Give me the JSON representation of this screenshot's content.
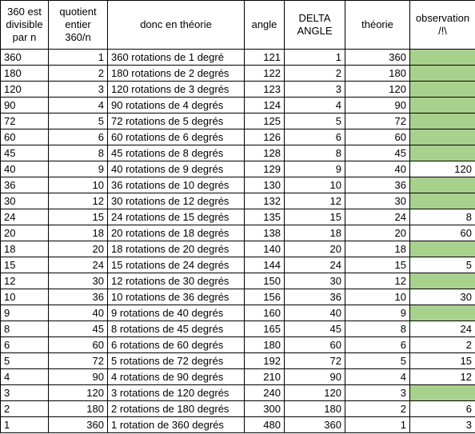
{
  "headers": {
    "divisible": "360 est divisible par n",
    "quotient": "quotient entier 360/n",
    "donc": "donc en théorie",
    "angle": "angle",
    "delta": "DELTA ANGLE",
    "theorie": "théorie",
    "observation": "observation /!\\"
  },
  "rows": [
    {
      "n": "360",
      "q": "1",
      "d": "360 rotations de 1 degré",
      "angle": "121",
      "delta": "1",
      "th": "360",
      "obs": "",
      "green": true
    },
    {
      "n": "180",
      "q": "2",
      "d": "180 rotations de 2 degrés",
      "angle": "122",
      "delta": "2",
      "th": "180",
      "obs": "",
      "green": true
    },
    {
      "n": "120",
      "q": "3",
      "d": "120 rotations de 3 degrés",
      "angle": "123",
      "delta": "3",
      "th": "120",
      "obs": "",
      "green": true
    },
    {
      "n": "90",
      "q": "4",
      "d": "90 rotations de 4 degrés",
      "angle": "124",
      "delta": "4",
      "th": "90",
      "obs": "",
      "green": true
    },
    {
      "n": "72",
      "q": "5",
      "d": "72 rotations de 5 degrés",
      "angle": "125",
      "delta": "5",
      "th": "72",
      "obs": "",
      "green": true
    },
    {
      "n": "60",
      "q": "6",
      "d": "60 rotations de 6 degrés",
      "angle": "126",
      "delta": "6",
      "th": "60",
      "obs": "",
      "green": true
    },
    {
      "n": "45",
      "q": "8",
      "d": "45 rotations de 8 degrés",
      "angle": "128",
      "delta": "8",
      "th": "45",
      "obs": "",
      "green": true
    },
    {
      "n": "40",
      "q": "9",
      "d": "40 rotations de 9 degrés",
      "angle": "129",
      "delta": "9",
      "th": "40",
      "obs": "120",
      "green": false
    },
    {
      "n": "36",
      "q": "10",
      "d": "36 rotations de 10 degrés",
      "angle": "130",
      "delta": "10",
      "th": "36",
      "obs": "",
      "green": true
    },
    {
      "n": "30",
      "q": "12",
      "d": "30 rotations de 12 degrés",
      "angle": "132",
      "delta": "12",
      "th": "30",
      "obs": "",
      "green": true
    },
    {
      "n": "24",
      "q": "15",
      "d": "24 rotations de 15 degrés",
      "angle": "135",
      "delta": "15",
      "th": "24",
      "obs": "8",
      "green": false
    },
    {
      "n": "20",
      "q": "18",
      "d": "20 rotations de 18 degrés",
      "angle": "138",
      "delta": "18",
      "th": "20",
      "obs": "60",
      "green": false
    },
    {
      "n": "18",
      "q": "20",
      "d": "18 rotations de 20 degrés",
      "angle": "140",
      "delta": "20",
      "th": "18",
      "obs": "",
      "green": true
    },
    {
      "n": "15",
      "q": "24",
      "d": "15 rotations de 24 degrés",
      "angle": "144",
      "delta": "24",
      "th": "15",
      "obs": "5",
      "green": false
    },
    {
      "n": "12",
      "q": "30",
      "d": "12 rotations de 30 degrés",
      "angle": "150",
      "delta": "30",
      "th": "12",
      "obs": "",
      "green": true
    },
    {
      "n": "10",
      "q": "36",
      "d": "10 rotations de 36 degrés",
      "angle": "156",
      "delta": "36",
      "th": "10",
      "obs": "30",
      "green": false
    },
    {
      "n": "9",
      "q": "40",
      "d": "9 rotations de 40 degrés",
      "angle": "160",
      "delta": "40",
      "th": "9",
      "obs": "",
      "green": true
    },
    {
      "n": "8",
      "q": "45",
      "d": "8 rotations de 45 degrés",
      "angle": "165",
      "delta": "45",
      "th": "8",
      "obs": "24",
      "green": false
    },
    {
      "n": "6",
      "q": "60",
      "d": "6 rotations de 60 degrés",
      "angle": "180",
      "delta": "60",
      "th": "6",
      "obs": "2",
      "green": false
    },
    {
      "n": "5",
      "q": "72",
      "d": "5 rotations de 72 degrés",
      "angle": "192",
      "delta": "72",
      "th": "5",
      "obs": "15",
      "green": false
    },
    {
      "n": "4",
      "q": "90",
      "d": "4 rotations de 90 degrés",
      "angle": "210",
      "delta": "90",
      "th": "4",
      "obs": "12",
      "green": false
    },
    {
      "n": "3",
      "q": "120",
      "d": "3 rotations de 120 degrés",
      "angle": "240",
      "delta": "120",
      "th": "3",
      "obs": "",
      "green": true
    },
    {
      "n": "2",
      "q": "180",
      "d": "2 rotations de 180 degrés",
      "angle": "300",
      "delta": "180",
      "th": "2",
      "obs": "6",
      "green": false
    },
    {
      "n": "1",
      "q": "360",
      "d": "1 rotation de 360 degrés",
      "angle": "480",
      "delta": "360",
      "th": "1",
      "obs": "3",
      "green": false
    }
  ],
  "colors": {
    "observation_ok": "#a9d18e"
  }
}
